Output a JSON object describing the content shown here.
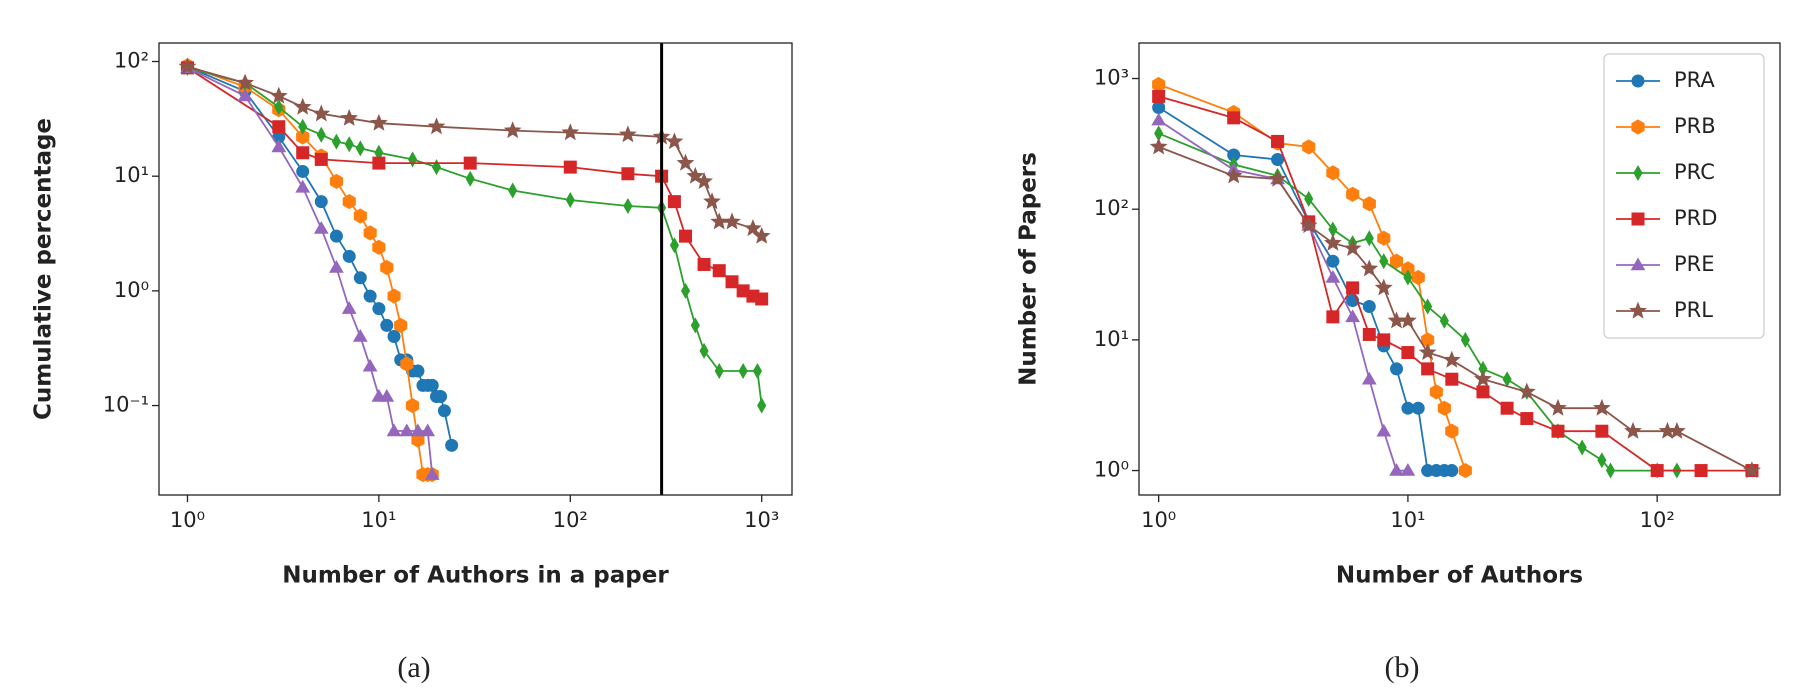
{
  "chart_data": [
    {
      "type": "line",
      "xscale": "log",
      "yscale": "log",
      "xlabel": "Number of Authors in a paper",
      "ylabel": "Cumulative percentage",
      "caption": "(a)",
      "xlim": [
        0.71,
        1440
      ],
      "ylim": [
        0.0166,
        145
      ],
      "xticks": [
        {
          "value": 1,
          "label": "10⁰"
        },
        {
          "value": 10,
          "label": "10¹"
        },
        {
          "value": 100,
          "label": "10²"
        },
        {
          "value": 1000,
          "label": "10³"
        }
      ],
      "yticks": [
        {
          "value": 0.1,
          "label": "10⁻¹"
        },
        {
          "value": 1,
          "label": "10⁰"
        },
        {
          "value": 10,
          "label": "10¹"
        },
        {
          "value": 100,
          "label": "10²"
        }
      ],
      "vline": 300,
      "vline_color": "#000000",
      "series": [
        {
          "color": "#1f77b4",
          "marker": "o",
          "x": [
            1,
            2,
            3,
            4,
            5,
            6,
            7,
            8,
            9,
            10,
            11,
            12,
            13,
            14,
            15,
            16,
            17,
            18,
            19,
            20,
            21,
            22,
            24
          ],
          "values": [
            90,
            55,
            22,
            11,
            6,
            3,
            2,
            1.3,
            0.9,
            0.7,
            0.5,
            0.4,
            0.25,
            0.25,
            0.2,
            0.2,
            0.15,
            0.15,
            0.15,
            0.12,
            0.12,
            0.09,
            0.045
          ]
        },
        {
          "color": "#ff7f0e",
          "marker": "h",
          "x": [
            1,
            2,
            3,
            4,
            5,
            6,
            7,
            8,
            9,
            10,
            11,
            12,
            13,
            14,
            15,
            16,
            17,
            18,
            19
          ],
          "values": [
            92,
            60,
            38,
            22,
            15,
            9,
            6,
            4.5,
            3.2,
            2.4,
            1.6,
            0.9,
            0.5,
            0.23,
            0.1,
            0.05,
            0.025,
            0.025,
            0.025
          ]
        },
        {
          "color": "#2ca02c",
          "marker": "d",
          "x": [
            1,
            2,
            3,
            4,
            5,
            6,
            7,
            8,
            10,
            15,
            20,
            30,
            50,
            100,
            200,
            300,
            350,
            400,
            450,
            500,
            600,
            800,
            950,
            1000
          ],
          "values": [
            88,
            65,
            40,
            27,
            23,
            20,
            19,
            17.5,
            16,
            14,
            12,
            9.5,
            7.5,
            6.2,
            5.5,
            5.3,
            2.5,
            1.0,
            0.5,
            0.3,
            0.2,
            0.2,
            0.2,
            0.1
          ]
        },
        {
          "color": "#d62728",
          "marker": "s",
          "x": [
            1,
            3,
            4,
            5,
            10,
            30,
            100,
            200,
            300,
            350,
            400,
            500,
            600,
            700,
            800,
            900,
            1000
          ],
          "values": [
            88,
            27,
            16,
            14,
            13,
            13,
            12,
            10.5,
            10,
            6,
            3,
            1.7,
            1.5,
            1.2,
            1,
            0.9,
            0.85
          ]
        },
        {
          "color": "#9467bd",
          "marker": "^",
          "x": [
            1,
            2,
            3,
            4,
            5,
            6,
            7,
            8,
            9,
            10,
            11,
            12,
            14,
            16,
            18,
            19
          ],
          "values": [
            88,
            50,
            18,
            8,
            3.5,
            1.6,
            0.7,
            0.4,
            0.22,
            0.12,
            0.12,
            0.06,
            0.06,
            0.06,
            0.06,
            0.025
          ]
        },
        {
          "color": "#8c564b",
          "marker": "*",
          "x": [
            1,
            2,
            3,
            4,
            5,
            7,
            10,
            20,
            50,
            100,
            200,
            300,
            350,
            400,
            450,
            500,
            550,
            600,
            700,
            900,
            1000
          ],
          "values": [
            90,
            65,
            50,
            40,
            35,
            32,
            29,
            27,
            25,
            24,
            23,
            22,
            20,
            13,
            10,
            9,
            6,
            4,
            4,
            3.5,
            3
          ]
        }
      ]
    },
    {
      "type": "line",
      "xscale": "log",
      "yscale": "log",
      "xlabel": "Number of Authors",
      "ylabel": "Number of Papers",
      "caption": "(b)",
      "xlim": [
        0.834,
        311
      ],
      "ylim": [
        0.65,
        1870
      ],
      "xticks": [
        {
          "value": 1,
          "label": "10⁰"
        },
        {
          "value": 10,
          "label": "10¹"
        },
        {
          "value": 100,
          "label": "10²"
        }
      ],
      "yticks": [
        {
          "value": 1,
          "label": "10⁰"
        },
        {
          "value": 10,
          "label": "10¹"
        },
        {
          "value": 100,
          "label": "10²"
        },
        {
          "value": 1000,
          "label": "10³"
        }
      ],
      "legend": "upper right",
      "series": [
        {
          "name": "PRA",
          "color": "#1f77b4",
          "marker": "o",
          "x": [
            1,
            2,
            3,
            4,
            5,
            6,
            7,
            8,
            9,
            10,
            11,
            12,
            13,
            14,
            15
          ],
          "values": [
            600,
            260,
            240,
            80,
            40,
            20,
            18,
            9,
            6,
            3,
            3,
            1,
            1,
            1,
            1
          ]
        },
        {
          "name": "PRB",
          "color": "#ff7f0e",
          "marker": "h",
          "x": [
            1,
            2,
            3,
            4,
            5,
            6,
            7,
            8,
            9,
            10,
            11,
            12,
            13,
            14,
            15,
            17
          ],
          "values": [
            900,
            550,
            320,
            300,
            190,
            130,
            110,
            60,
            40,
            35,
            30,
            10,
            4,
            3,
            2,
            1
          ]
        },
        {
          "name": "PRC",
          "color": "#2ca02c",
          "marker": "d",
          "x": [
            1,
            2,
            3,
            4,
            5,
            6,
            7,
            8,
            10,
            12,
            14,
            17,
            20,
            25,
            30,
            40,
            50,
            60,
            65,
            100,
            120
          ],
          "values": [
            380,
            220,
            180,
            120,
            70,
            55,
            60,
            40,
            30,
            18,
            14,
            10,
            6,
            5,
            4,
            2,
            1.5,
            1.2,
            1,
            1,
            1
          ]
        },
        {
          "name": "PRD",
          "color": "#d62728",
          "marker": "s",
          "x": [
            1,
            2,
            3,
            4,
            5,
            6,
            7,
            8,
            10,
            12,
            15,
            20,
            25,
            30,
            40,
            60,
            100,
            150,
            240
          ],
          "values": [
            730,
            500,
            330,
            80,
            15,
            25,
            11,
            10,
            8,
            6,
            5,
            4,
            3,
            2.5,
            2,
            2,
            1,
            1,
            1
          ]
        },
        {
          "name": "PRE",
          "color": "#9467bd",
          "marker": "^",
          "x": [
            1,
            2,
            3,
            4,
            5,
            6,
            7,
            8,
            9,
            10
          ],
          "values": [
            480,
            200,
            170,
            75,
            30,
            15,
            5,
            2,
            1,
            1
          ]
        },
        {
          "name": "PRL",
          "color": "#8c564b",
          "marker": "*",
          "x": [
            1,
            2,
            3,
            4,
            5,
            6,
            7,
            8,
            9,
            10,
            12,
            15,
            20,
            30,
            40,
            60,
            80,
            110,
            120,
            240
          ],
          "values": [
            300,
            180,
            170,
            75,
            55,
            50,
            35,
            25,
            14,
            14,
            8,
            7,
            5,
            4,
            3,
            3,
            2,
            2,
            2,
            1
          ]
        }
      ]
    }
  ]
}
